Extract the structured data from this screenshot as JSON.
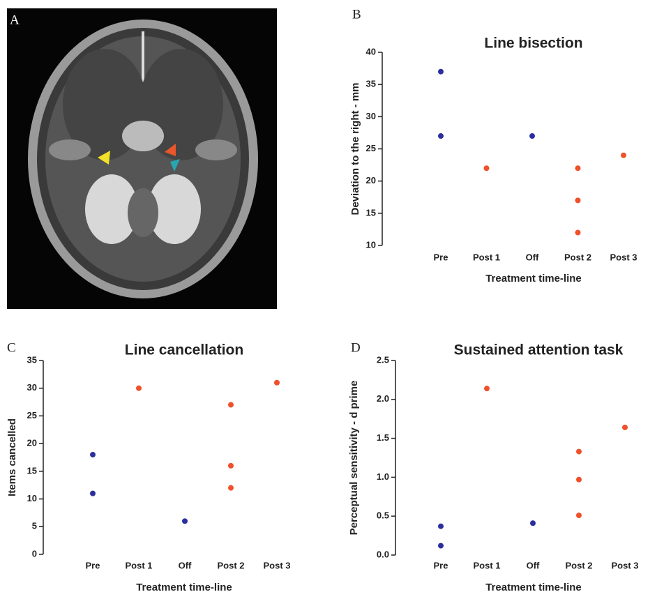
{
  "panel_labels": [
    "A",
    "B",
    "C",
    "D"
  ],
  "chart_data": [
    {
      "type": "scatter",
      "title": "Line bisection",
      "x_label": "Treatment time-line",
      "y_label": "Deviation to the right - mm",
      "categories": [
        "Pre",
        "Post 1",
        "Off",
        "Post 2",
        "Post 3"
      ],
      "ylim": [
        10,
        40
      ],
      "yticks": [
        10,
        15,
        20,
        25,
        30,
        35,
        40
      ],
      "series": [
        {
          "color": "#2b2f9e",
          "x": [
            "Pre",
            "Pre",
            "Off"
          ],
          "values": [
            37,
            27,
            27
          ]
        },
        {
          "color": "#f0502a",
          "x": [
            "Post 1",
            "Post 2",
            "Post 2",
            "Post 2",
            "Post 3"
          ],
          "values": [
            22,
            22,
            17,
            12,
            24
          ]
        }
      ]
    },
    {
      "type": "scatter",
      "title": "Line cancellation",
      "x_label": "Treatment time-line",
      "y_label": "Items cancelled",
      "categories": [
        "Pre",
        "Post 1",
        "Off",
        "Post 2",
        "Post 3"
      ],
      "ylim": [
        0,
        35
      ],
      "yticks": [
        0,
        5,
        10,
        15,
        20,
        25,
        30,
        35
      ],
      "series": [
        {
          "color": "#2b2f9e",
          "x": [
            "Pre",
            "Pre",
            "Off"
          ],
          "values": [
            18,
            11,
            6
          ]
        },
        {
          "color": "#f0502a",
          "x": [
            "Post 1",
            "Post 2",
            "Post 2",
            "Post 2",
            "Post 3"
          ],
          "values": [
            30,
            27,
            16,
            12,
            31
          ]
        }
      ]
    },
    {
      "type": "scatter",
      "title": "Sustained attention task",
      "x_label": "Treatment time-line",
      "y_label": "Perceptual sensitivity - d prime",
      "categories": [
        "Pre",
        "Post 1",
        "Off",
        "Post 2",
        "Post 3"
      ],
      "ylim": [
        0,
        2.5
      ],
      "yticks": [
        {
          "value": 0,
          "label": "0.0"
        },
        0.5,
        {
          "value": 1,
          "label": "1.0"
        },
        1.5,
        {
          "value": 2,
          "label": "2.0"
        },
        2.5
      ],
      "series": [
        {
          "color": "#2b2f9e",
          "x": [
            "Pre",
            "Pre",
            "Off"
          ],
          "values": [
            0.37,
            0.12,
            0.41
          ]
        },
        {
          "color": "#f0502a",
          "x": [
            "Post 1",
            "Post 2",
            "Post 2",
            "Post 2",
            "Post 3"
          ],
          "values": [
            2.14,
            1.33,
            0.97,
            0.51,
            1.64
          ]
        }
      ]
    }
  ]
}
